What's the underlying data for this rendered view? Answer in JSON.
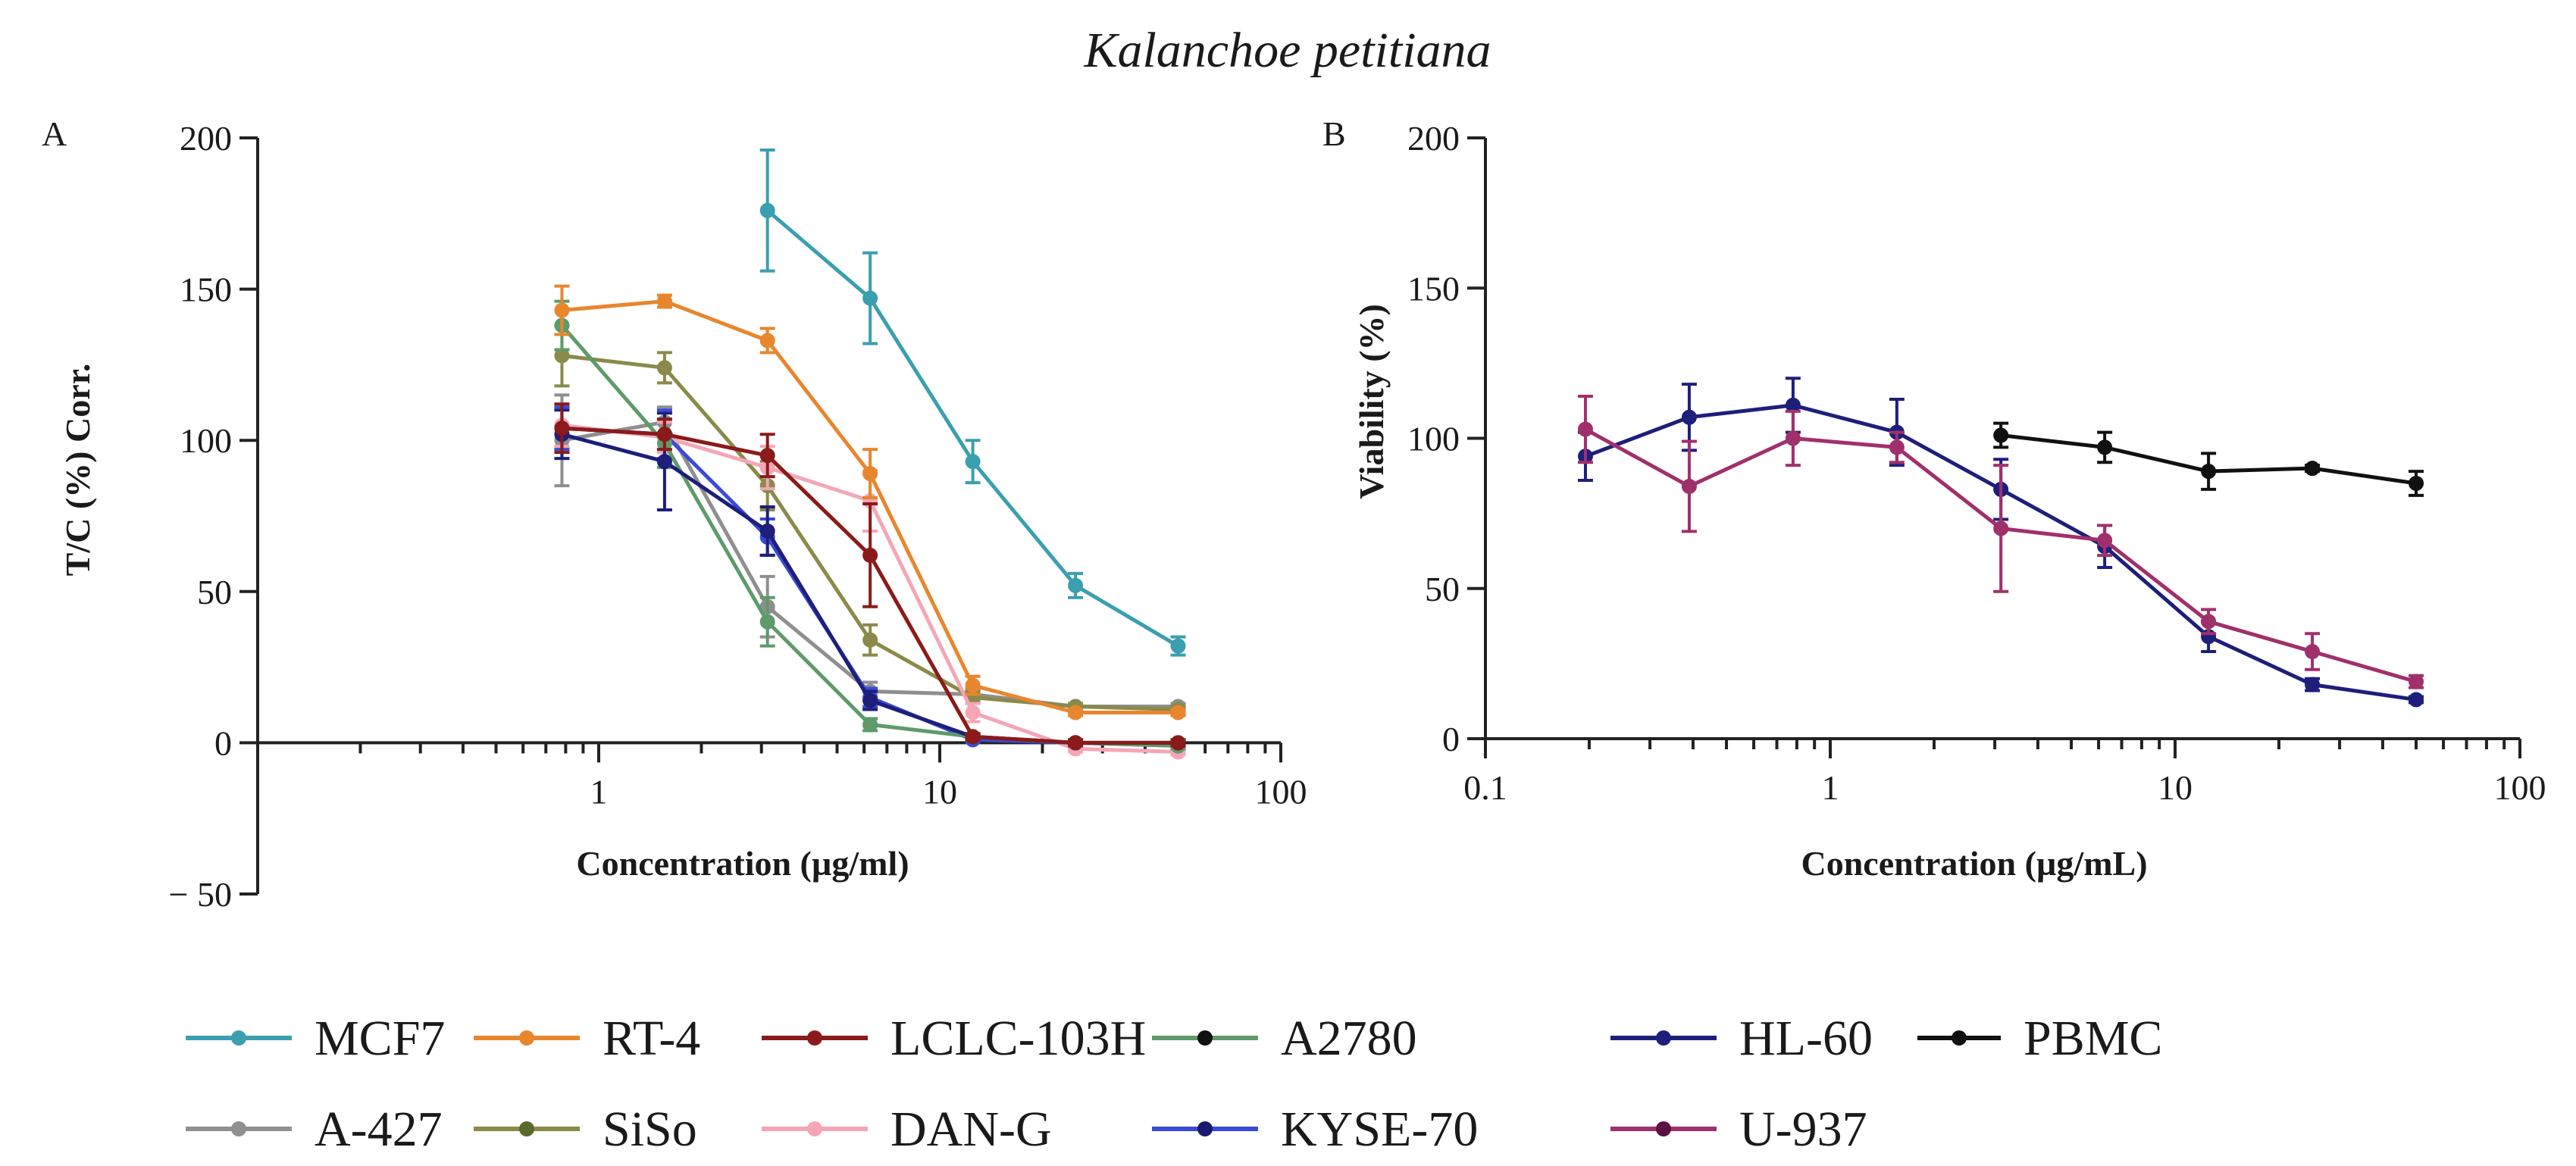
{
  "figure_title": "Kalanchoe petitiana",
  "chart_data": [
    {
      "panel_label": "A",
      "type": "line",
      "xscale": "log",
      "xlim": [
        0.1,
        100
      ],
      "ylim": [
        -50,
        200
      ],
      "xlabel": "Concentration (µg/ml)",
      "ylabel": "T/C (%) Corr.",
      "xticks": [
        {
          "value": 1,
          "label": "1"
        },
        {
          "value": 10,
          "label": "10"
        },
        {
          "value": 100,
          "label": "100"
        }
      ],
      "yticks": [
        {
          "value": -50,
          "label": "− 50"
        },
        {
          "value": 0,
          "label": "0"
        },
        {
          "value": 50,
          "label": "50"
        },
        {
          "value": 100,
          "label": "100"
        },
        {
          "value": 150,
          "label": "150"
        },
        {
          "value": 200,
          "label": "200"
        }
      ],
      "x": [
        0.78,
        1.56,
        3.125,
        6.25,
        12.5,
        25,
        50
      ],
      "series": [
        {
          "name": "A-427",
          "color": "#8f8f8f",
          "values": [
            100,
            106,
            45,
            17,
            16,
            12,
            12
          ],
          "err": [
            15,
            5,
            10,
            3,
            2,
            1,
            1
          ]
        },
        {
          "name": "SiSo",
          "color": "#8a8a4a",
          "values": [
            128,
            124,
            85,
            34,
            15,
            12,
            11
          ],
          "err": [
            10,
            5,
            8,
            5,
            2,
            1,
            1
          ]
        },
        {
          "name": "DAN-G",
          "color": "#f4a6b6",
          "values": [
            105,
            101,
            91,
            80,
            10,
            -2,
            -3
          ],
          "err": [
            7,
            5,
            7,
            10,
            3,
            1,
            1
          ]
        },
        {
          "name": "KYSE-70",
          "color": "#3a4ad8",
          "values": [
            104,
            102,
            68,
            15,
            1,
            0,
            -1
          ],
          "err": [
            7,
            8,
            6,
            3,
            1,
            1,
            1
          ]
        },
        {
          "name": "A2780",
          "color": "#5e9a6a",
          "values": [
            138,
            99,
            40,
            6,
            2,
            0,
            -1
          ],
          "err": [
            8,
            8,
            8,
            2,
            1,
            1,
            1
          ]
        },
        {
          "name": "HL-60",
          "color": "#1e1f7a",
          "values": [
            102,
            93,
            70,
            14,
            2,
            0,
            0
          ],
          "err": [
            8,
            16,
            8,
            3,
            1,
            1,
            1
          ]
        },
        {
          "name": "LCLC-103H",
          "color": "#8b1a1a",
          "values": [
            104,
            102,
            95,
            62,
            2,
            0,
            0
          ],
          "err": [
            8,
            5,
            7,
            17,
            1,
            1,
            1
          ]
        },
        {
          "name": "RT-4",
          "color": "#e8862e",
          "values": [
            143,
            146,
            133,
            89,
            19,
            10,
            10
          ],
          "err": [
            8,
            2,
            4,
            8,
            3,
            1,
            1
          ]
        },
        {
          "name": "MCF7",
          "color": "#3a9fae",
          "values": [
            176,
            147,
            93,
            52,
            32
          ],
          "x": [
            3.125,
            6.25,
            12.5,
            25,
            50
          ],
          "err": [
            20,
            15,
            7,
            4,
            3
          ]
        }
      ]
    },
    {
      "panel_label": "B",
      "type": "line",
      "xscale": "log",
      "xlim": [
        0.1,
        100
      ],
      "ylim": [
        0,
        200
      ],
      "xlabel": "Concentration (µg/mL)",
      "ylabel": "Viability (%)",
      "xticks": [
        {
          "value": 0.1,
          "label": "0.1"
        },
        {
          "value": 1,
          "label": "1"
        },
        {
          "value": 10,
          "label": "10"
        },
        {
          "value": 100,
          "label": "100"
        }
      ],
      "yticks": [
        {
          "value": 0,
          "label": "0"
        },
        {
          "value": 50,
          "label": "50"
        },
        {
          "value": 100,
          "label": "100"
        },
        {
          "value": 150,
          "label": "150"
        },
        {
          "value": 200,
          "label": "200"
        }
      ],
      "series": [
        {
          "name": "PBMC",
          "color": "#111111",
          "x": [
            3.125,
            6.25,
            12.5,
            25,
            50
          ],
          "values": [
            101,
            97,
            89,
            90,
            85
          ],
          "err": [
            4,
            5,
            6,
            1,
            4
          ]
        },
        {
          "name": "HL-60",
          "color": "#1e1f7a",
          "x": [
            0.195,
            0.39,
            0.78,
            1.56,
            3.125,
            6.25,
            12.5,
            25,
            50
          ],
          "values": [
            94,
            107,
            111,
            102,
            83,
            64,
            34,
            18,
            13
          ],
          "err": [
            8,
            11,
            9,
            11,
            10,
            7,
            5,
            2,
            1
          ]
        },
        {
          "name": "U-937",
          "color": "#a0306c",
          "x": [
            0.195,
            0.39,
            0.78,
            1.56,
            3.125,
            6.25,
            12.5,
            25,
            50
          ],
          "values": [
            103,
            84,
            100,
            97,
            70,
            66,
            39,
            29,
            19
          ],
          "err": [
            11,
            15,
            9,
            5,
            21,
            5,
            4,
            6,
            2
          ]
        }
      ]
    }
  ],
  "legend": {
    "row1": [
      "MCF7",
      "RT-4",
      "LCLC-103H",
      "A2780",
      "HL-60",
      "PBMC"
    ],
    "row2": [
      "A-427",
      "SiSo",
      "DAN-G",
      "KYSE-70",
      "U-937"
    ],
    "colors": {
      "MCF7": "#3a9fae",
      "RT-4": "#e8862e",
      "LCLC-103H": "#8b1a1a",
      "A2780": "#5e9a6a",
      "HL-60": "#1e1f7a",
      "PBMC": "#111111",
      "A-427": "#8f8f8f",
      "SiSo": "#8a8a4a",
      "DAN-G": "#f4a6b6",
      "KYSE-70": "#3a4ad8",
      "U-937": "#a0306c"
    },
    "marker_colors": {
      "A2780": "#111111",
      "KYSE-70": "#1a1a6e",
      "U-937": "#5a1040",
      "SiSo": "#5a6a2a"
    }
  }
}
